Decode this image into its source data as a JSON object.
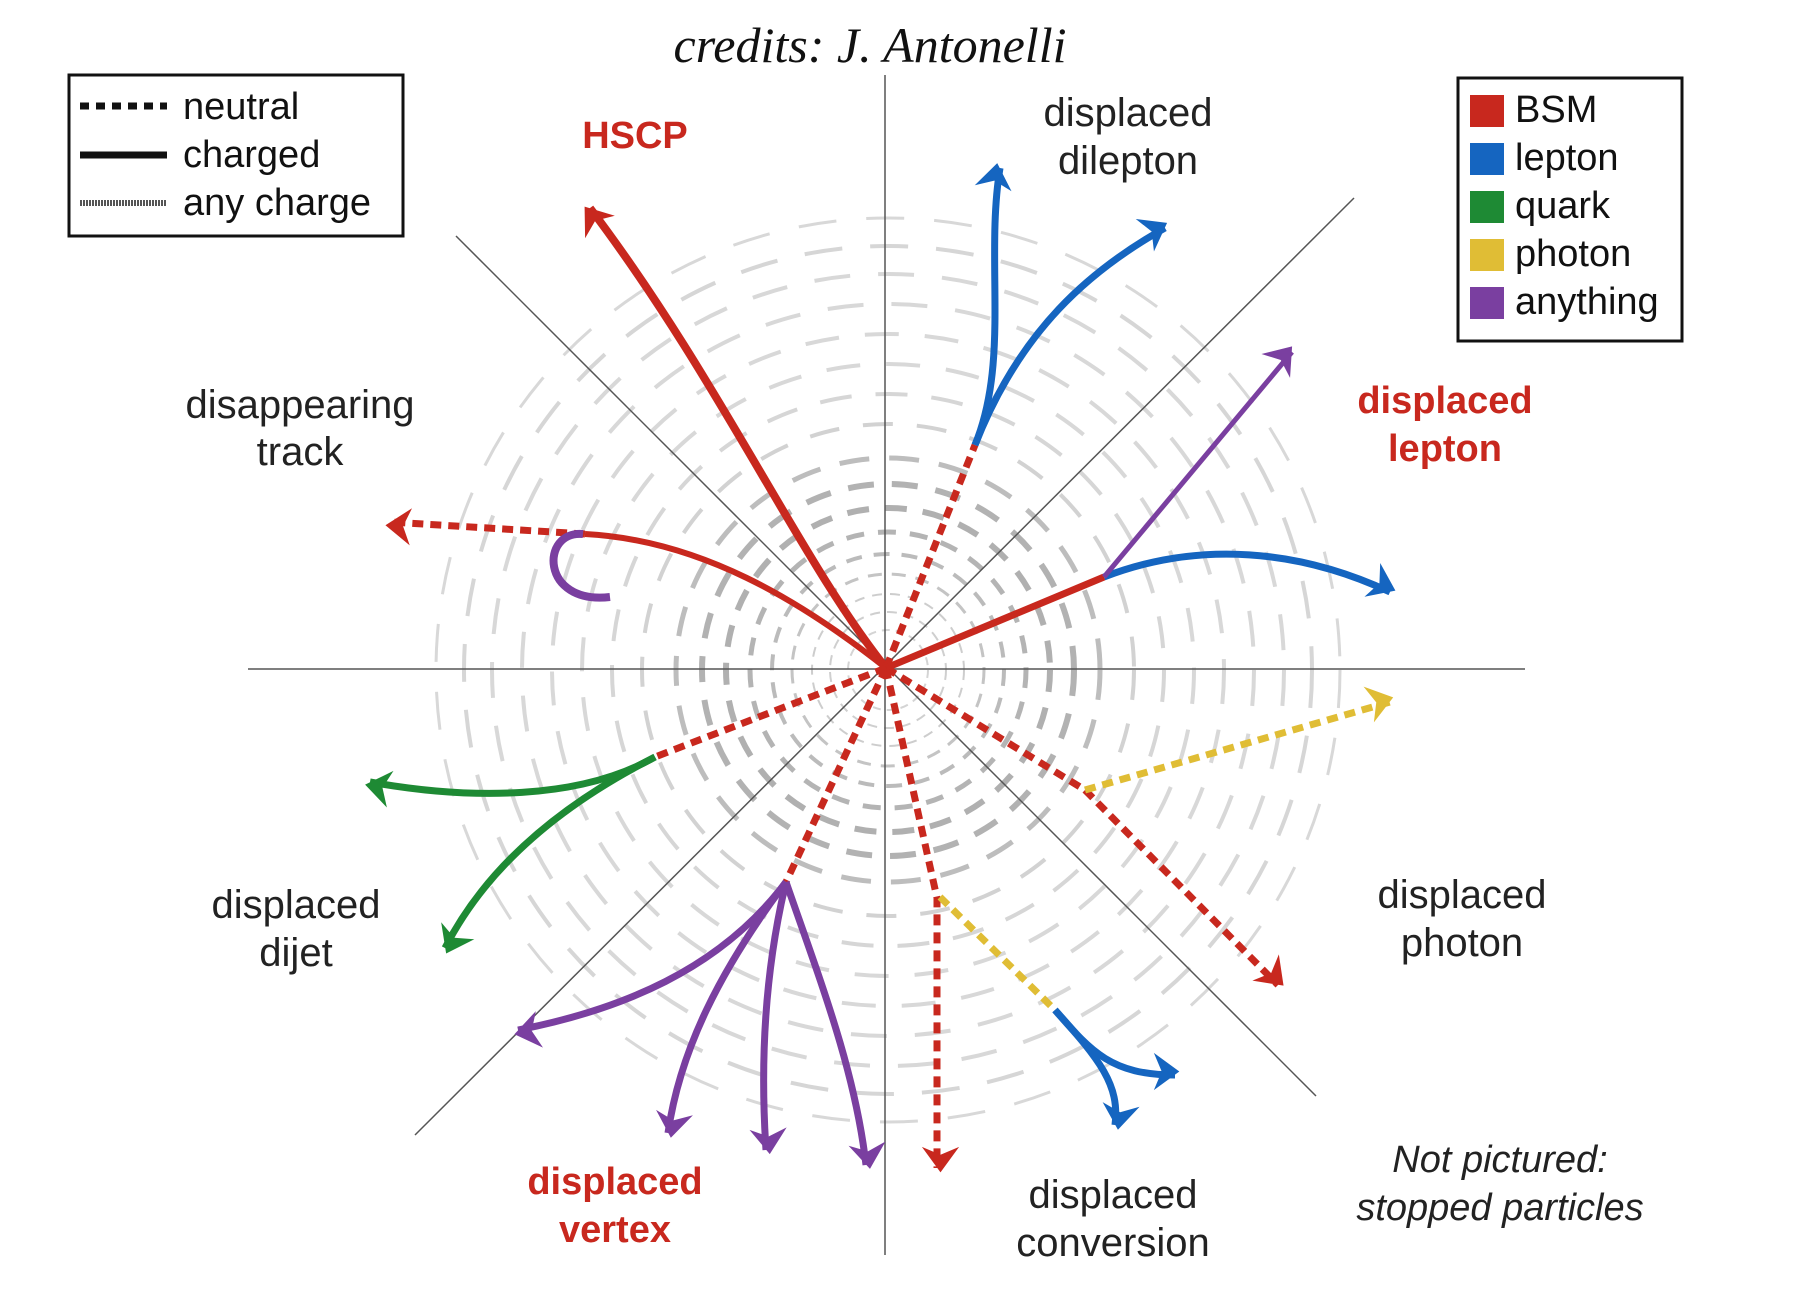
{
  "credit": "credits: J. Antonelli",
  "colors": {
    "BSM": "#c8281e",
    "lepton": "#1565c0",
    "quark": "#1e8a34",
    "photon": "#e0bd35",
    "anything": "#7a3fa0"
  },
  "legend_style": {
    "neutral": "neutral",
    "charged": "charged",
    "any_charge": "any charge"
  },
  "legend_color": [
    {
      "label": "BSM",
      "color": "#c8281e"
    },
    {
      "label": "lepton",
      "color": "#1565c0"
    },
    {
      "label": "quark",
      "color": "#1e8a34"
    },
    {
      "label": "photon",
      "color": "#e0bd35"
    },
    {
      "label": "anything",
      "color": "#7a3fa0"
    }
  ],
  "signatures": {
    "hscp": "HSCP",
    "displaced_dilepton": [
      "displaced",
      "dilepton"
    ],
    "disappearing_track": [
      "disappearing",
      "track"
    ],
    "displaced_lepton": [
      "displaced",
      "lepton"
    ],
    "displaced_dijet": [
      "displaced",
      "dijet"
    ],
    "displaced_photon": [
      "displaced",
      "photon"
    ],
    "displaced_vertex": [
      "displaced",
      "vertex"
    ],
    "displaced_conversion": [
      "displaced",
      "conversion"
    ]
  },
  "note": [
    "Not pictured:",
    "stopped particles"
  ]
}
